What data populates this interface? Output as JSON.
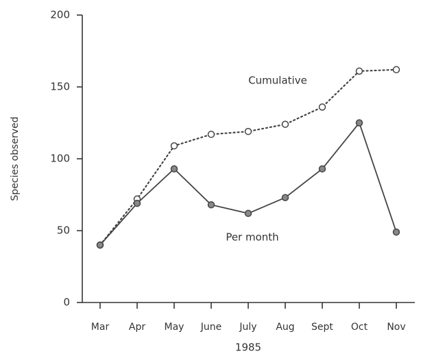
{
  "chart_data": {
    "type": "line",
    "xlabel": "1985",
    "ylabel": "Species observed",
    "categories": [
      "Mar",
      "Apr",
      "May",
      "June",
      "July",
      "Aug",
      "Sept",
      "Oct",
      "Nov"
    ],
    "series": [
      {
        "name": "Cumulative",
        "color": "#444444",
        "dashed": true,
        "marker": "open",
        "values": [
          40,
          72,
          109,
          117,
          119,
          124,
          136,
          161,
          162
        ]
      },
      {
        "name": "Per month",
        "color": "#444444",
        "dashed": false,
        "marker": "filled",
        "values": [
          40,
          69,
          93,
          68,
          62,
          73,
          93,
          125,
          49
        ]
      }
    ],
    "ylim": [
      0,
      200
    ],
    "yticks": [
      0,
      50,
      100,
      150,
      200
    ]
  }
}
